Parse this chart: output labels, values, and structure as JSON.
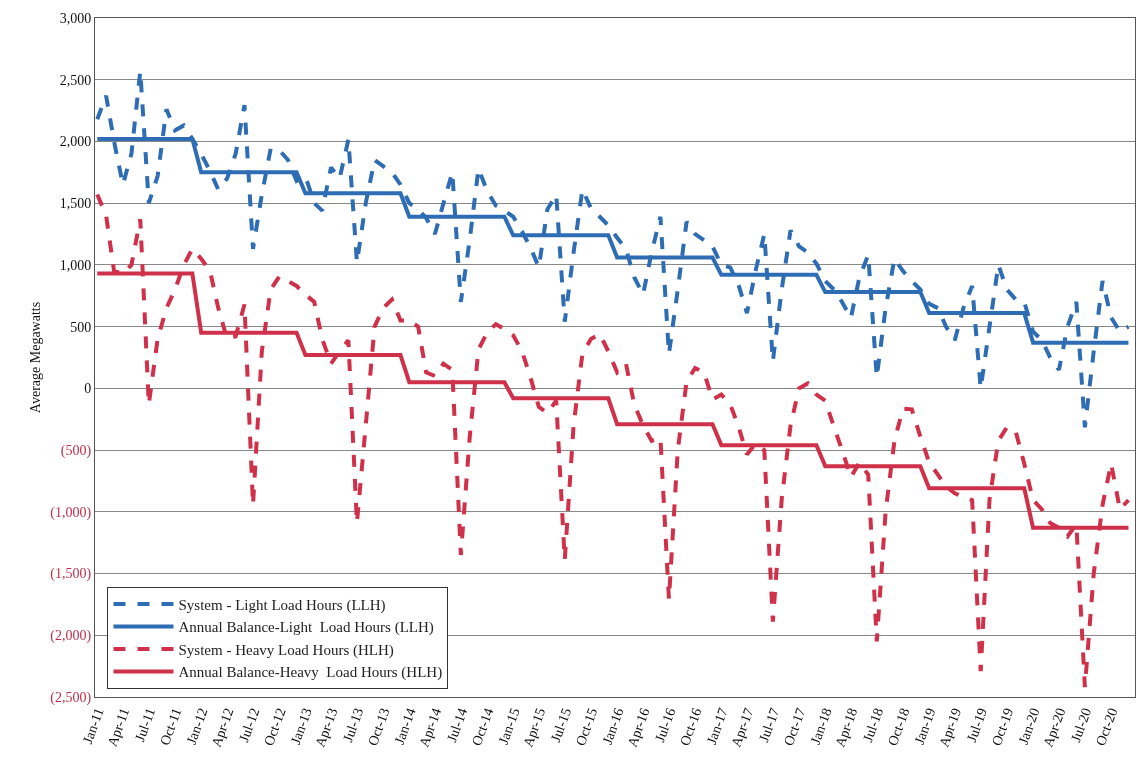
{
  "chart_data": {
    "type": "line",
    "ylabel": "Average Megawatts",
    "x": [
      "2011-01",
      "2011-02",
      "2011-03",
      "2011-04",
      "2011-05",
      "2011-06",
      "2011-07",
      "2011-08",
      "2011-09",
      "2011-10",
      "2011-11",
      "2011-12",
      "2012-01",
      "2012-02",
      "2012-03",
      "2012-04",
      "2012-05",
      "2012-06",
      "2012-07",
      "2012-08",
      "2012-09",
      "2012-10",
      "2012-11",
      "2012-12",
      "2013-01",
      "2013-02",
      "2013-03",
      "2013-04",
      "2013-05",
      "2013-06",
      "2013-07",
      "2013-08",
      "2013-09",
      "2013-10",
      "2013-11",
      "2013-12",
      "2014-01",
      "2014-02",
      "2014-03",
      "2014-04",
      "2014-05",
      "2014-06",
      "2014-07",
      "2014-08",
      "2014-09",
      "2014-10",
      "2014-11",
      "2014-12",
      "2015-01",
      "2015-02",
      "2015-03",
      "2015-04",
      "2015-05",
      "2015-06",
      "2015-07",
      "2015-08",
      "2015-09",
      "2015-10",
      "2015-11",
      "2015-12",
      "2016-01",
      "2016-02",
      "2016-03",
      "2016-04",
      "2016-05",
      "2016-06",
      "2016-07",
      "2016-08",
      "2016-09",
      "2016-10",
      "2016-11",
      "2016-12",
      "2017-01",
      "2017-02",
      "2017-03",
      "2017-04",
      "2017-05",
      "2017-06",
      "2017-07",
      "2017-08",
      "2017-09",
      "2017-10",
      "2017-11",
      "2017-12",
      "2018-01",
      "2018-02",
      "2018-03",
      "2018-04",
      "2018-05",
      "2018-06",
      "2018-07",
      "2018-08",
      "2018-09",
      "2018-10",
      "2018-11",
      "2018-12",
      "2019-01",
      "2019-02",
      "2019-03",
      "2019-04",
      "2019-05",
      "2019-06",
      "2019-07",
      "2019-08",
      "2019-09",
      "2019-10",
      "2019-11",
      "2019-12",
      "2020-01",
      "2020-02",
      "2020-03",
      "2020-04",
      "2020-05",
      "2020-06",
      "2020-07",
      "2020-08",
      "2020-09",
      "2020-10",
      "2020-11",
      "2020-12"
    ],
    "series": [
      {
        "name": "System - Light Load Hours (LLH)",
        "color": "#2e6db4",
        "line_style": "dashed",
        "values": [
          2180,
          2370,
          2000,
          1650,
          1900,
          2570,
          1500,
          1720,
          2260,
          2090,
          2130,
          2020,
          1900,
          1760,
          1610,
          1700,
          1900,
          2295,
          1130,
          1570,
          1940,
          1930,
          1850,
          1680,
          1720,
          1500,
          1440,
          1790,
          1700,
          2015,
          1020,
          1500,
          1850,
          1800,
          1750,
          1650,
          1500,
          1450,
          1380,
          1250,
          1500,
          1750,
          700,
          1200,
          1780,
          1600,
          1480,
          1440,
          1390,
          1270,
          1150,
          980,
          1450,
          1570,
          540,
          1100,
          1610,
          1460,
          1390,
          1320,
          1220,
          1130,
          900,
          760,
          1100,
          1390,
          280,
          800,
          1350,
          1250,
          1200,
          1150,
          1000,
          980,
          850,
          610,
          950,
          1250,
          220,
          800,
          1280,
          1150,
          1100,
          1010,
          870,
          800,
          700,
          570,
          900,
          1080,
          90,
          650,
          1050,
          950,
          870,
          800,
          685,
          650,
          500,
          390,
          650,
          830,
          0,
          500,
          1000,
          800,
          720,
          700,
          460,
          390,
          250,
          150,
          500,
          700,
          -315,
          300,
          870,
          575,
          460,
          500
        ]
      },
      {
        "name": "Annual Balance-Light  Load Hours (LLH)",
        "color": "#2e6db4",
        "line_style": "solid",
        "x": [
          "2011-01",
          "2011-12",
          "2012-01",
          "2012-12",
          "2013-01",
          "2013-12",
          "2014-01",
          "2014-12",
          "2015-01",
          "2015-12",
          "2016-01",
          "2016-12",
          "2017-01",
          "2017-12",
          "2018-01",
          "2018-12",
          "2019-01",
          "2019-12",
          "2020-01",
          "2020-12"
        ],
        "values": [
          2020,
          2020,
          1750,
          1750,
          1580,
          1580,
          1390,
          1390,
          1240,
          1240,
          1060,
          1060,
          920,
          920,
          780,
          780,
          610,
          610,
          370,
          370
        ]
      },
      {
        "name": "System - Heavy Load Hours (HLH)",
        "color": "#d0314a",
        "line_style": "dashed",
        "values": [
          1570,
          1400,
          950,
          930,
          1000,
          1370,
          -130,
          400,
          650,
          800,
          1000,
          1130,
          1050,
          950,
          650,
          400,
          420,
          680,
          -945,
          300,
          800,
          905,
          870,
          830,
          760,
          700,
          400,
          200,
          300,
          390,
          -1090,
          -300,
          500,
          650,
          720,
          550,
          550,
          500,
          130,
          100,
          200,
          150,
          -1350,
          -400,
          315,
          450,
          520,
          480,
          430,
          300,
          100,
          -150,
          -200,
          -100,
          -1390,
          -300,
          280,
          400,
          440,
          300,
          130,
          200,
          -130,
          -300,
          -425,
          -400,
          -1710,
          -500,
          55,
          165,
          130,
          -90,
          -50,
          -130,
          -300,
          -535,
          -450,
          -500,
          -1890,
          -900,
          -300,
          0,
          40,
          -50,
          -100,
          -315,
          -500,
          -720,
          -600,
          -700,
          -2050,
          -1000,
          -425,
          -165,
          -170,
          -390,
          -600,
          -700,
          -795,
          -850,
          -880,
          -905,
          -2290,
          -900,
          -425,
          -315,
          -350,
          -610,
          -905,
          -980,
          -1090,
          -1130,
          -1200,
          -1100,
          -2420,
          -1500,
          -945,
          -610,
          -980,
          -905
        ]
      },
      {
        "name": "Annual Balance-Heavy  Load Hours (HLH)",
        "color": "#d0314a",
        "line_style": "solid",
        "x": [
          "2011-01",
          "2011-12",
          "2012-01",
          "2012-12",
          "2013-01",
          "2013-12",
          "2014-01",
          "2014-12",
          "2015-01",
          "2015-12",
          "2016-01",
          "2016-12",
          "2017-01",
          "2017-12",
          "2018-01",
          "2018-12",
          "2019-01",
          "2019-12",
          "2020-01",
          "2020-12"
        ],
        "values": [
          930,
          930,
          450,
          450,
          270,
          270,
          50,
          50,
          -80,
          -80,
          -290,
          -290,
          -460,
          -460,
          -630,
          -630,
          -810,
          -810,
          -1130,
          -1130
        ]
      }
    ],
    "xlim": [
      "2010-12-24",
      "2020-12-24"
    ],
    "xticks": [
      {
        "value": "2011-01",
        "label": "Jan-11"
      },
      {
        "value": "2011-04",
        "label": "Apr-11"
      },
      {
        "value": "2011-07",
        "label": "Jul-11"
      },
      {
        "value": "2011-10",
        "label": "Oct-11"
      },
      {
        "value": "2012-01",
        "label": "Jan-12"
      },
      {
        "value": "2012-04",
        "label": "Apr-12"
      },
      {
        "value": "2012-07",
        "label": "Jul-12"
      },
      {
        "value": "2012-10",
        "label": "Oct-12"
      },
      {
        "value": "2013-01",
        "label": "Jan-13"
      },
      {
        "value": "2013-04",
        "label": "Apr-13"
      },
      {
        "value": "2013-07",
        "label": "Jul-13"
      },
      {
        "value": "2013-10",
        "label": "Oct-13"
      },
      {
        "value": "2014-01",
        "label": "Jan-14"
      },
      {
        "value": "2014-04",
        "label": "Apr-14"
      },
      {
        "value": "2014-07",
        "label": "Jul-14"
      },
      {
        "value": "2014-10",
        "label": "Oct-14"
      },
      {
        "value": "2015-01",
        "label": "Jan-15"
      },
      {
        "value": "2015-04",
        "label": "Apr-15"
      },
      {
        "value": "2015-07",
        "label": "Jul-15"
      },
      {
        "value": "2015-10",
        "label": "Oct-15"
      },
      {
        "value": "2016-01",
        "label": "Jan-16"
      },
      {
        "value": "2016-04",
        "label": "Apr-16"
      },
      {
        "value": "2016-07",
        "label": "Jul-16"
      },
      {
        "value": "2016-10",
        "label": "Oct-16"
      },
      {
        "value": "2017-01",
        "label": "Jan-17"
      },
      {
        "value": "2017-04",
        "label": "Apr-17"
      },
      {
        "value": "2017-07",
        "label": "Jul-17"
      },
      {
        "value": "2017-10",
        "label": "Oct-17"
      },
      {
        "value": "2018-01",
        "label": "Jan-18"
      },
      {
        "value": "2018-04",
        "label": "Apr-18"
      },
      {
        "value": "2018-07",
        "label": "Jul-18"
      },
      {
        "value": "2018-10",
        "label": "Oct-18"
      },
      {
        "value": "2019-01",
        "label": "Jan-19"
      },
      {
        "value": "2019-04",
        "label": "Apr-19"
      },
      {
        "value": "2019-07",
        "label": "Jul-19"
      },
      {
        "value": "2019-10",
        "label": "Oct-19"
      },
      {
        "value": "2020-01",
        "label": "Jan-20"
      },
      {
        "value": "2020-04",
        "label": "Apr-20"
      },
      {
        "value": "2020-07",
        "label": "Jul-20"
      },
      {
        "value": "2020-10",
        "label": "Oct-20"
      }
    ],
    "ylim": [
      -2500,
      3000
    ],
    "yticks": [
      {
        "value": 3000,
        "label": "3,000"
      },
      {
        "value": 2500,
        "label": "2,500"
      },
      {
        "value": 2000,
        "label": "2,000"
      },
      {
        "value": 1500,
        "label": "1,500"
      },
      {
        "value": 1000,
        "label": "1,000"
      },
      {
        "value": 500,
        "label": "500"
      },
      {
        "value": 0,
        "label": "0"
      },
      {
        "value": -500,
        "label": "(500)"
      },
      {
        "value": -1000,
        "label": "(1,000)"
      },
      {
        "value": -1500,
        "label": "(1,500)"
      },
      {
        "value": -2000,
        "label": "(2,000)"
      },
      {
        "value": -2500,
        "label": "(2,500)"
      }
    ],
    "grid": "y",
    "legend": "bottom left",
    "marker": "none"
  }
}
